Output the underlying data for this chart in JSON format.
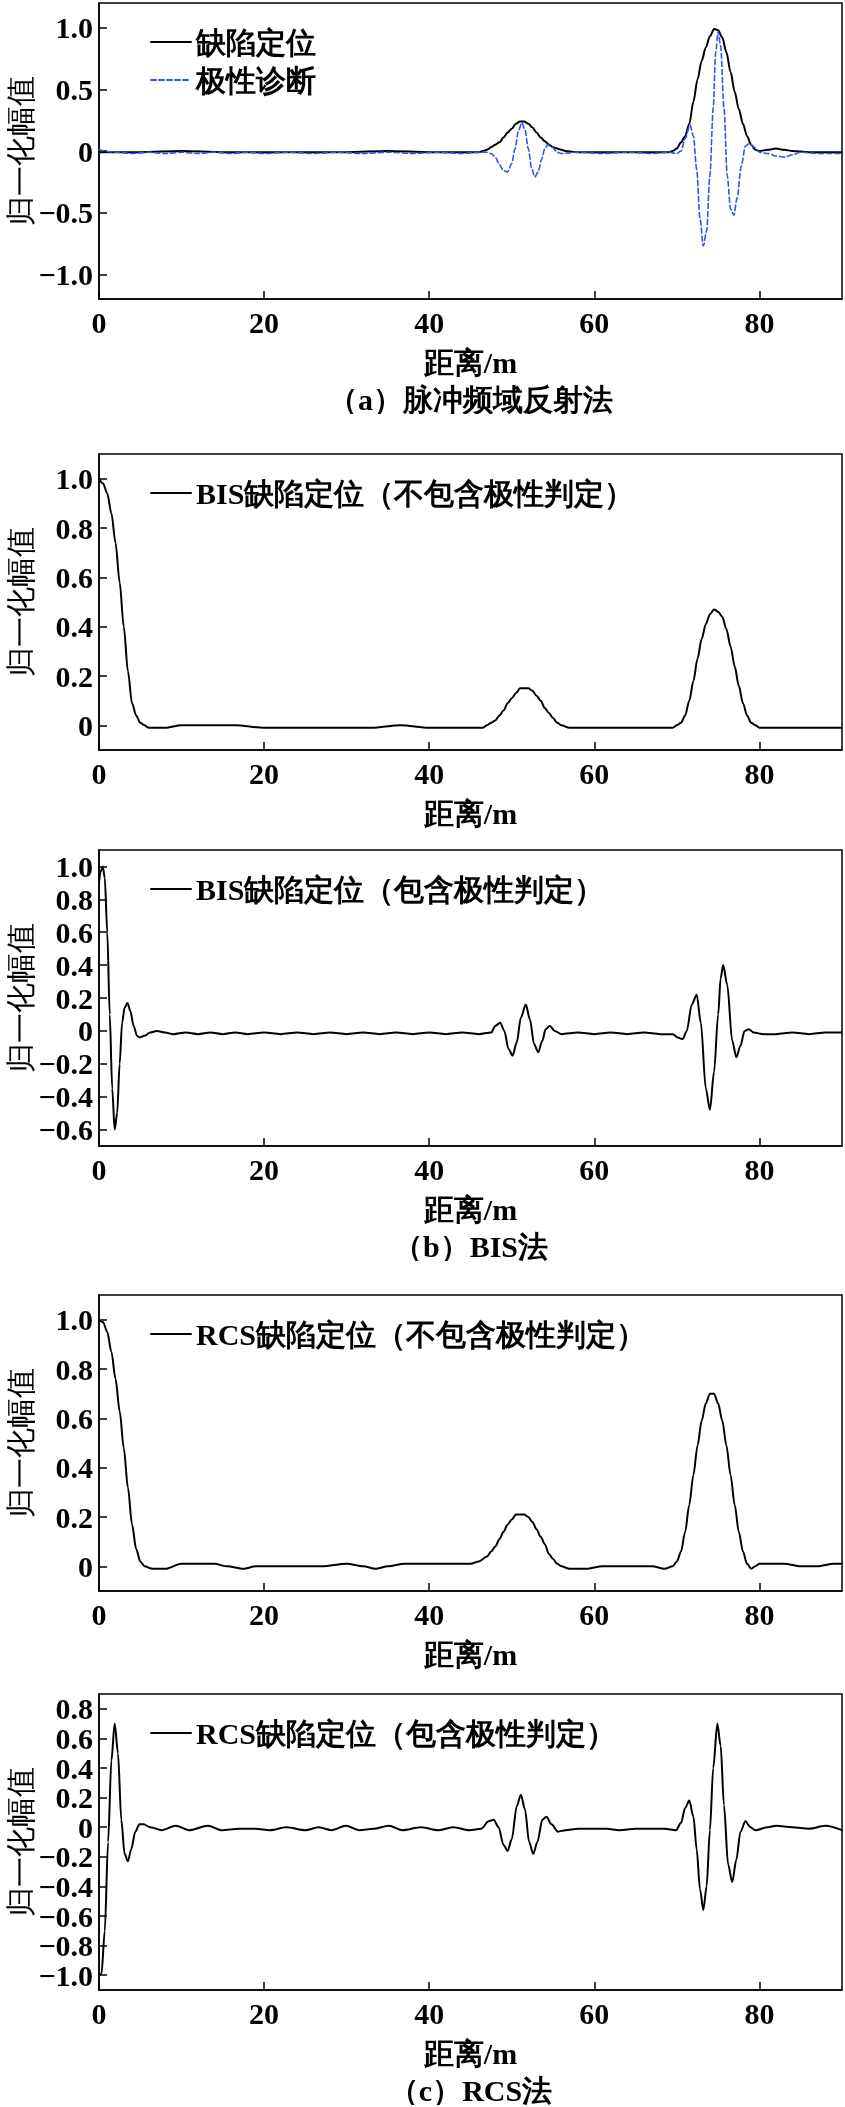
{
  "chart_data": [
    {
      "type": "line",
      "xlabel": "距离/m",
      "ylabel": "归一化幅值",
      "xlim": [
        0,
        90
      ],
      "xticks": [
        0,
        20,
        40,
        60,
        80
      ],
      "ylim": [
        -1.2,
        1.2
      ],
      "yticks": [
        {
          "value": -1,
          "label": "−1.0"
        },
        {
          "value": -0.5,
          "label": "−0.5"
        },
        0,
        0.5,
        {
          "value": 1,
          "label": "1.0"
        }
      ],
      "legend": "top left",
      "annotations": [
        "（a）脉冲频域反射法"
      ],
      "series": [
        {
          "name": "缺陷定位",
          "color": "#000000",
          "line_style": "solid",
          "x": [
            0,
            5,
            10,
            15,
            20,
            25,
            30,
            35,
            40,
            44,
            46,
            46.5,
            47,
            47.5,
            48,
            48.5,
            49,
            49.5,
            50,
            50.5,
            51,
            51.5,
            52,
            52.5,
            53,
            53.5,
            54,
            54.5,
            55,
            55.5,
            56,
            56.5,
            58,
            62,
            66,
            69,
            69.5,
            70,
            70.5,
            71,
            71.5,
            72,
            72.5,
            73,
            73.5,
            74,
            74.5,
            75,
            75.5,
            76,
            76.5,
            77,
            77.5,
            78,
            78.5,
            79,
            79.5,
            80,
            81,
            82,
            83,
            84,
            86,
            88,
            90
          ],
          "values": [
            -0.01,
            -0.01,
            0.0,
            -0.01,
            -0.01,
            -0.01,
            -0.01,
            0.0,
            -0.01,
            -0.01,
            -0.01,
            0.0,
            0.01,
            0.03,
            0.05,
            0.07,
            0.11,
            0.15,
            0.18,
            0.22,
            0.24,
            0.24,
            0.22,
            0.19,
            0.15,
            0.11,
            0.08,
            0.05,
            0.03,
            0.02,
            0.01,
            0.0,
            -0.01,
            -0.01,
            -0.01,
            -0.01,
            0.0,
            0.02,
            0.07,
            0.12,
            0.22,
            0.4,
            0.58,
            0.73,
            0.84,
            0.93,
            0.99,
            0.98,
            0.92,
            0.8,
            0.64,
            0.48,
            0.34,
            0.22,
            0.12,
            0.05,
            0.01,
            0.0,
            0.01,
            0.02,
            0.01,
            0.0,
            -0.01,
            -0.01,
            -0.01
          ]
        },
        {
          "name": "极性诊断",
          "color": "#3355ee",
          "line_style": "dashed",
          "x": [
            0,
            2,
            4,
            6,
            8,
            10,
            12,
            14,
            16,
            18,
            20,
            23,
            26,
            29,
            32,
            35,
            38,
            41,
            44,
            46,
            47,
            47.5,
            48,
            48.5,
            49,
            49.5,
            50,
            50.4,
            50.8,
            51.2,
            51.6,
            52,
            52.4,
            52.8,
            53.2,
            53.6,
            54,
            54.4,
            54.9,
            55.5,
            56,
            58,
            61,
            64,
            67,
            69,
            70,
            70.5,
            71,
            71.6,
            72,
            72.4,
            72.8,
            73.2,
            73.6,
            74,
            74.4,
            74.7,
            75,
            75.3,
            75.7,
            76.1,
            76.5,
            76.9,
            77.3,
            77.8,
            78.3,
            78.8,
            79.4,
            80,
            81,
            82,
            83,
            84,
            85,
            87,
            90
          ],
          "values": [
            0.01,
            -0.01,
            -0.02,
            -0.01,
            -0.02,
            -0.01,
            -0.02,
            -0.01,
            -0.02,
            -0.01,
            -0.02,
            -0.01,
            -0.02,
            -0.01,
            -0.02,
            -0.01,
            -0.02,
            -0.01,
            -0.02,
            -0.01,
            -0.01,
            -0.02,
            -0.05,
            -0.11,
            -0.16,
            -0.17,
            -0.1,
            0.02,
            0.16,
            0.23,
            0.17,
            0.02,
            -0.14,
            -0.21,
            -0.17,
            -0.07,
            0.02,
            0.05,
            0.03,
            -0.01,
            -0.02,
            -0.01,
            -0.02,
            -0.01,
            -0.02,
            -0.01,
            -0.02,
            0.0,
            0.1,
            0.21,
            0.12,
            -0.15,
            -0.55,
            -0.77,
            -0.65,
            -0.2,
            0.35,
            0.8,
            0.97,
            0.85,
            0.35,
            -0.2,
            -0.47,
            -0.52,
            -0.38,
            -0.12,
            0.04,
            0.06,
            0.03,
            -0.01,
            -0.02,
            -0.04,
            -0.05,
            -0.03,
            -0.01,
            -0.02,
            -0.02
          ]
        }
      ]
    },
    {
      "type": "line",
      "xlabel": "距离/m",
      "ylabel": "归一化幅值",
      "xlim": [
        0,
        90
      ],
      "xticks": [
        0,
        20,
        40,
        60,
        80
      ],
      "ylim": [
        -0.1,
        1.1
      ],
      "yticks": [
        0,
        0.2,
        0.4,
        0.6,
        0.8,
        {
          "value": 1,
          "label": "1.0"
        }
      ],
      "legend": "top left",
      "series": [
        {
          "name": "BIS缺陷定位（不包含极性判定）",
          "color": "#000000",
          "line_style": "solid",
          "x": [
            0,
            0.5,
            1,
            1.5,
            2,
            2.5,
            3,
            3.5,
            4,
            4.5,
            5,
            5.5,
            6,
            8,
            10,
            13,
            16.5,
            20,
            25,
            30,
            33,
            36.5,
            40,
            44,
            46.5,
            47,
            47.5,
            48,
            48.5,
            49,
            49.5,
            50,
            50.5,
            51,
            51.5,
            52,
            52.5,
            53,
            53.5,
            54,
            54.5,
            55,
            55.5,
            56,
            57,
            60,
            65,
            69.5,
            70,
            70.5,
            71,
            71.5,
            72,
            72.5,
            73,
            73.5,
            74,
            74.5,
            75,
            75.5,
            76,
            76.5,
            77,
            77.5,
            78,
            78.5,
            79,
            79.5,
            80,
            85,
            90
          ],
          "values": [
            1.0,
            0.98,
            0.94,
            0.86,
            0.74,
            0.58,
            0.4,
            0.22,
            0.09,
            0.04,
            0.01,
            0.0,
            -0.01,
            -0.01,
            0.0,
            0.0,
            0.0,
            -0.01,
            -0.01,
            -0.01,
            -0.01,
            0.0,
            -0.01,
            -0.01,
            -0.01,
            0.0,
            0.01,
            0.02,
            0.04,
            0.06,
            0.09,
            0.11,
            0.13,
            0.15,
            0.15,
            0.15,
            0.14,
            0.12,
            0.1,
            0.07,
            0.05,
            0.03,
            0.01,
            0.0,
            -0.01,
            -0.01,
            -0.01,
            -0.01,
            0.0,
            0.01,
            0.04,
            0.1,
            0.18,
            0.27,
            0.35,
            0.41,
            0.45,
            0.47,
            0.46,
            0.44,
            0.39,
            0.32,
            0.24,
            0.16,
            0.09,
            0.04,
            0.01,
            0.0,
            -0.01,
            -0.01,
            -0.01
          ]
        }
      ]
    },
    {
      "type": "line",
      "xlabel": "距离/m",
      "ylabel": "归一化幅值",
      "xlim": [
        0,
        90
      ],
      "xticks": [
        0,
        20,
        40,
        60,
        80
      ],
      "ylim": [
        -0.7,
        1.1
      ],
      "yticks": [
        {
          "value": -0.6,
          "label": "−0.6"
        },
        {
          "value": -0.4,
          "label": "−0.4"
        },
        {
          "value": -0.2,
          "label": "−0.2"
        },
        0,
        0.2,
        0.4,
        0.6,
        0.8,
        {
          "value": 1,
          "label": "1.0"
        }
      ],
      "legend": "top left",
      "annotations": [
        "（b）BIS法"
      ],
      "series": [
        {
          "name": "BIS缺陷定位（包含极性判定）",
          "color": "#000000",
          "line_style": "solid",
          "x": [
            0,
            0.2,
            0.45,
            0.7,
            1,
            1.3,
            1.6,
            1.9,
            2.2,
            2.5,
            2.8,
            3.1,
            3.45,
            3.8,
            4.2,
            4.6,
            4.9,
            5.5,
            6.2,
            7,
            8,
            9,
            10.5,
            12,
            13.5,
            15,
            16.5,
            18,
            20,
            22,
            24,
            26,
            28,
            30,
            32,
            34,
            36,
            38,
            40,
            42,
            44,
            46,
            47.5,
            48,
            48.6,
            49.1,
            49.6,
            50.1,
            50.6,
            51.1,
            51.7,
            52.2,
            52.7,
            53.2,
            53.7,
            54.1,
            54.6,
            55.2,
            56,
            58,
            60,
            62,
            64,
            66,
            68,
            69.5,
            70.1,
            70.7,
            71.2,
            71.8,
            72.4,
            72.9,
            73.5,
            74,
            74.5,
            75,
            75.3,
            75.6,
            76.1,
            76.7,
            77.2,
            77.7,
            78.2,
            78.7,
            79.3,
            80.5,
            82,
            84,
            86,
            88,
            90
          ],
          "values": [
            0.9,
            0.97,
            1.0,
            0.93,
            0.6,
            0.1,
            -0.35,
            -0.6,
            -0.5,
            -0.2,
            0.05,
            0.14,
            0.17,
            0.12,
            0.03,
            -0.03,
            -0.04,
            -0.03,
            -0.01,
            0.0,
            -0.01,
            -0.02,
            -0.01,
            -0.02,
            -0.01,
            -0.02,
            -0.01,
            -0.02,
            -0.01,
            -0.02,
            -0.01,
            -0.02,
            -0.01,
            -0.02,
            -0.01,
            -0.02,
            -0.01,
            -0.02,
            -0.01,
            -0.02,
            -0.01,
            -0.02,
            -0.01,
            0.03,
            0.05,
            0.0,
            -0.11,
            -0.15,
            -0.07,
            0.08,
            0.16,
            0.07,
            -0.08,
            -0.13,
            -0.06,
            0.01,
            0.03,
            0.0,
            -0.02,
            -0.01,
            -0.02,
            -0.01,
            -0.02,
            -0.01,
            -0.02,
            -0.02,
            -0.04,
            -0.05,
            0.0,
            0.16,
            0.22,
            0.05,
            -0.35,
            -0.48,
            -0.25,
            0.1,
            0.32,
            0.4,
            0.28,
            -0.06,
            -0.16,
            -0.09,
            0.0,
            0.01,
            -0.01,
            -0.02,
            -0.02,
            -0.01,
            -0.02,
            -0.01,
            -0.01
          ]
        }
      ]
    },
    {
      "type": "line",
      "xlabel": "距离/m",
      "ylabel": "归一化幅值",
      "xlim": [
        0,
        90
      ],
      "xticks": [
        0,
        20,
        40,
        60,
        80
      ],
      "ylim": [
        -0.1,
        1.1
      ],
      "yticks": [
        0,
        0.2,
        0.4,
        0.6,
        0.8,
        {
          "value": 1,
          "label": "1.0"
        }
      ],
      "legend": "top left",
      "series": [
        {
          "name": "RCS缺陷定位（不包含极性判定）",
          "color": "#000000",
          "line_style": "solid",
          "x": [
            0,
            0.5,
            1,
            1.5,
            2,
            2.5,
            3,
            3.5,
            4,
            4.5,
            5,
            5.5,
            6.5,
            8,
            10,
            12,
            14,
            15.5,
            17.5,
            19,
            21,
            24,
            27,
            30,
            32,
            33.5,
            35,
            37,
            40,
            43,
            45,
            46,
            47,
            47.5,
            48,
            48.5,
            49,
            49.5,
            50,
            50.5,
            51,
            51.5,
            52,
            52.5,
            53,
            53.5,
            54,
            54.5,
            55,
            55.5,
            56,
            57,
            59,
            61,
            63,
            65,
            67,
            68.5,
            69.5,
            70,
            70.5,
            71,
            71.5,
            72,
            72.5,
            73,
            73.5,
            74,
            74.5,
            75,
            75.5,
            76,
            76.5,
            77,
            77.5,
            78,
            78.5,
            79,
            79.5,
            80,
            83,
            85,
            87,
            89,
            90
          ],
          "values": [
            1.0,
            0.99,
            0.95,
            0.87,
            0.76,
            0.63,
            0.48,
            0.32,
            0.17,
            0.07,
            0.02,
            0.0,
            -0.01,
            -0.01,
            0.01,
            0.01,
            0.01,
            0.0,
            -0.01,
            0.0,
            0.0,
            0.0,
            0.0,
            0.01,
            0.0,
            -0.01,
            0.0,
            0.01,
            0.01,
            0.01,
            0.01,
            0.02,
            0.04,
            0.06,
            0.08,
            0.11,
            0.14,
            0.17,
            0.19,
            0.21,
            0.21,
            0.21,
            0.2,
            0.18,
            0.15,
            0.12,
            0.09,
            0.05,
            0.03,
            0.01,
            0.0,
            -0.01,
            -0.01,
            0.0,
            0.0,
            0.0,
            0.0,
            -0.01,
            0.0,
            0.02,
            0.06,
            0.14,
            0.25,
            0.37,
            0.49,
            0.59,
            0.66,
            0.7,
            0.7,
            0.66,
            0.59,
            0.49,
            0.37,
            0.25,
            0.14,
            0.06,
            0.01,
            -0.01,
            0.0,
            0.01,
            0.01,
            0.0,
            0.0,
            0.01,
            0.01
          ]
        }
      ]
    },
    {
      "type": "line",
      "xlabel": "距离/m",
      "ylabel": "归一化幅值",
      "xlim": [
        0,
        90
      ],
      "xticks": [
        0,
        20,
        40,
        60,
        80
      ],
      "ylim": [
        -1.1,
        0.9
      ],
      "yticks": [
        {
          "value": -1,
          "label": "−1.0"
        },
        {
          "value": -0.8,
          "label": "−0.8"
        },
        {
          "value": -0.6,
          "label": "−0.6"
        },
        {
          "value": -0.4,
          "label": "−0.4"
        },
        {
          "value": -0.2,
          "label": "−0.2"
        },
        0,
        0.2,
        0.4,
        0.6,
        0.8
      ],
      "legend": "top left",
      "annotations": [
        "（c）RCS法"
      ],
      "series": [
        {
          "name": "RCS缺陷定位（包含极性判定）",
          "color": "#000000",
          "line_style": "solid",
          "x": [
            0,
            0.3,
            0.7,
            1.1,
            1.5,
            1.9,
            2.3,
            2.7,
            3.1,
            3.5,
            3.9,
            4.4,
            4.9,
            5.4,
            6.2,
            7.6,
            9.3,
            10.9,
            13.2,
            14.8,
            17,
            19,
            20.7,
            22.7,
            25,
            26.6,
            28.2,
            29.9,
            31.5,
            33.3,
            35.1,
            36.7,
            39,
            41.1,
            42.9,
            44.9,
            46.3,
            47.2,
            47.8,
            48.4,
            49,
            49.5,
            50,
            50.6,
            51.1,
            51.6,
            52.1,
            52.6,
            53.1,
            53.7,
            54.2,
            54.8,
            55.6,
            56.5,
            58,
            60,
            61.5,
            63,
            65,
            67,
            68.5,
            69.9,
            70.5,
            71,
            71.5,
            72,
            72.4,
            72.8,
            73.2,
            73.6,
            74,
            74.4,
            74.9,
            75.3,
            75.7,
            76.2,
            76.7,
            77.2,
            77.7,
            78.3,
            78.9,
            79.5,
            81,
            82,
            84,
            86,
            88,
            90
          ],
          "values": [
            -1.0,
            -0.99,
            -0.7,
            -0.1,
            0.45,
            0.7,
            0.5,
            0.05,
            -0.18,
            -0.23,
            -0.15,
            -0.03,
            0.02,
            0.02,
            0.0,
            -0.02,
            0.01,
            -0.02,
            0.01,
            -0.02,
            -0.01,
            -0.01,
            -0.02,
            0.0,
            -0.02,
            0.0,
            -0.02,
            0.01,
            -0.02,
            -0.01,
            0.01,
            -0.02,
            0.0,
            -0.02,
            0.0,
            -0.02,
            -0.01,
            0.04,
            0.05,
            0.0,
            -0.12,
            -0.16,
            -0.08,
            0.14,
            0.22,
            0.12,
            -0.1,
            -0.18,
            -0.1,
            0.05,
            0.07,
            0.02,
            -0.03,
            -0.02,
            -0.01,
            -0.01,
            -0.01,
            -0.02,
            -0.01,
            -0.01,
            -0.01,
            -0.02,
            0.03,
            0.13,
            0.18,
            0.07,
            -0.15,
            -0.42,
            -0.56,
            -0.4,
            -0.02,
            0.4,
            0.7,
            0.55,
            0.15,
            -0.25,
            -0.37,
            -0.22,
            -0.03,
            0.04,
            0.0,
            -0.02,
            0.0,
            0.01,
            0.0,
            -0.01,
            0.01,
            -0.02
          ]
        }
      ]
    }
  ]
}
